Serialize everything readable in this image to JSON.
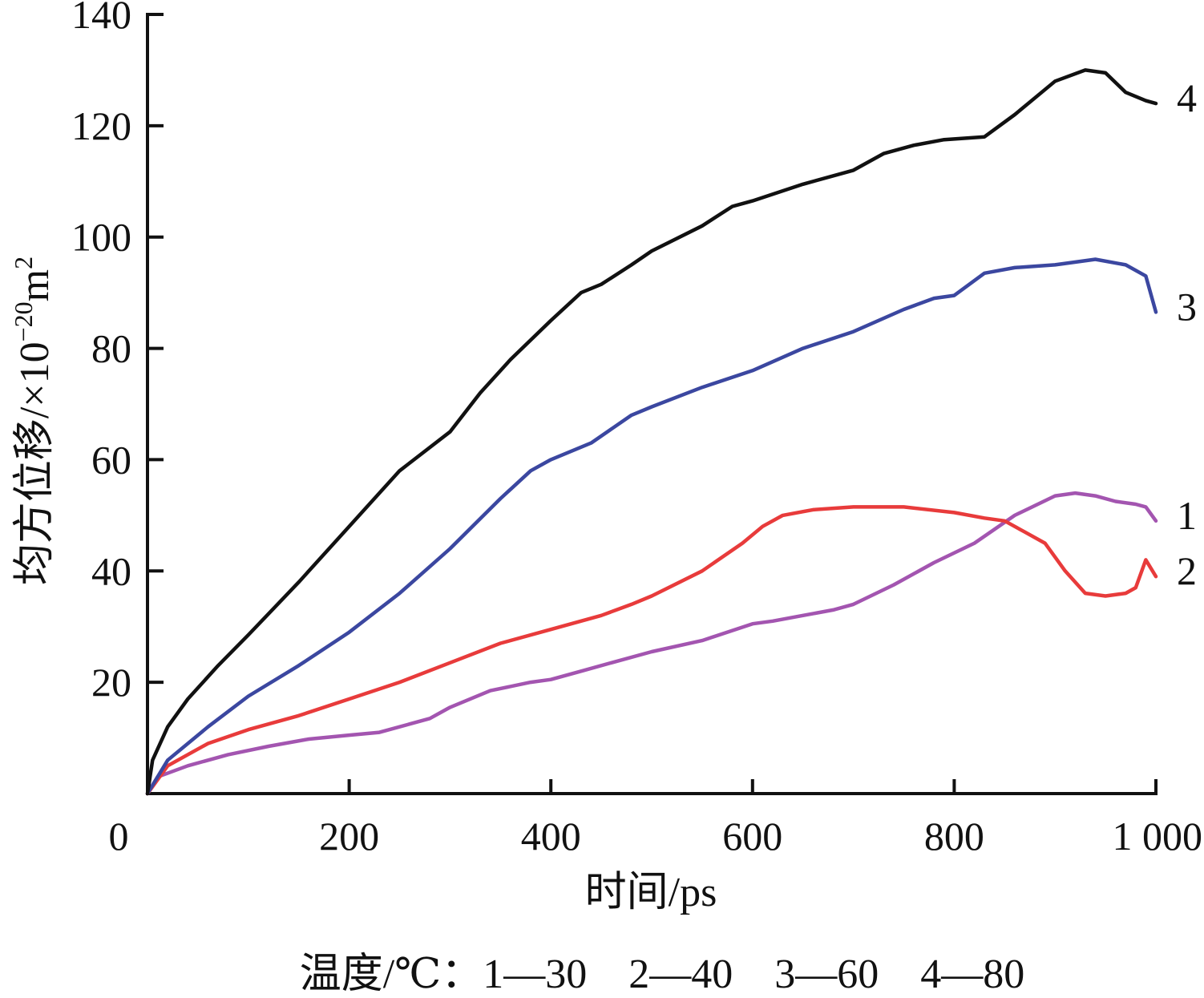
{
  "chart_data": {
    "type": "line",
    "xlabel": "时间/ps",
    "ylabel_main": "均方位移/×10",
    "ylabel_exp": "−20",
    "ylabel_unit": "m",
    "ylabel_unit_exp": "2",
    "xlim": [
      0,
      1000
    ],
    "ylim": [
      0,
      140
    ],
    "xticks": [
      {
        "value": 0,
        "label": "0"
      },
      {
        "value": 200,
        "label": "200"
      },
      {
        "value": 400,
        "label": "400"
      },
      {
        "value": 600,
        "label": "600"
      },
      {
        "value": 800,
        "label": "800"
      },
      {
        "value": 1000,
        "label": "1 000"
      }
    ],
    "yticks": [
      {
        "value": 20,
        "label": "20"
      },
      {
        "value": 40,
        "label": "40"
      },
      {
        "value": 60,
        "label": "60"
      },
      {
        "value": 80,
        "label": "80"
      },
      {
        "value": 100,
        "label": "100"
      },
      {
        "value": 120,
        "label": "120"
      },
      {
        "value": 140,
        "label": "140"
      }
    ],
    "grid": false,
    "legend_text": "温度/℃：1—30　2—40　3—60　4—80",
    "series": [
      {
        "name": "1",
        "color": "#a355b0",
        "points": [
          [
            0,
            0
          ],
          [
            10,
            3
          ],
          [
            40,
            5
          ],
          [
            80,
            7
          ],
          [
            120,
            8.5
          ],
          [
            160,
            9.8
          ],
          [
            200,
            10.5
          ],
          [
            230,
            11
          ],
          [
            260,
            12.5
          ],
          [
            280,
            13.5
          ],
          [
            300,
            15.5
          ],
          [
            340,
            18.5
          ],
          [
            380,
            20
          ],
          [
            400,
            20.5
          ],
          [
            430,
            22
          ],
          [
            460,
            23.5
          ],
          [
            500,
            25.5
          ],
          [
            550,
            27.5
          ],
          [
            600,
            30.5
          ],
          [
            620,
            31
          ],
          [
            650,
            32
          ],
          [
            680,
            33
          ],
          [
            700,
            34
          ],
          [
            740,
            37.5
          ],
          [
            780,
            41.5
          ],
          [
            820,
            45
          ],
          [
            860,
            50
          ],
          [
            900,
            53.5
          ],
          [
            920,
            54
          ],
          [
            940,
            53.5
          ],
          [
            960,
            52.5
          ],
          [
            980,
            52
          ],
          [
            990,
            51.5
          ],
          [
            1000,
            49
          ]
        ]
      },
      {
        "name": "2",
        "color": "#e83b3b",
        "points": [
          [
            0,
            0
          ],
          [
            20,
            5
          ],
          [
            60,
            9
          ],
          [
            100,
            11.5
          ],
          [
            150,
            14
          ],
          [
            200,
            17
          ],
          [
            250,
            20
          ],
          [
            300,
            23.5
          ],
          [
            350,
            27
          ],
          [
            400,
            29.5
          ],
          [
            450,
            32
          ],
          [
            480,
            34
          ],
          [
            500,
            35.5
          ],
          [
            550,
            40
          ],
          [
            590,
            45
          ],
          [
            610,
            48
          ],
          [
            630,
            50
          ],
          [
            660,
            51
          ],
          [
            700,
            51.5
          ],
          [
            750,
            51.5
          ],
          [
            800,
            50.5
          ],
          [
            830,
            49.5
          ],
          [
            850,
            49
          ],
          [
            870,
            47
          ],
          [
            890,
            45
          ],
          [
            910,
            40
          ],
          [
            930,
            36
          ],
          [
            950,
            35.5
          ],
          [
            970,
            36
          ],
          [
            980,
            37
          ],
          [
            990,
            42
          ],
          [
            1000,
            39
          ]
        ]
      },
      {
        "name": "3",
        "color": "#3b47a0",
        "points": [
          [
            0,
            0
          ],
          [
            20,
            6
          ],
          [
            60,
            12
          ],
          [
            100,
            17.5
          ],
          [
            150,
            23
          ],
          [
            200,
            29
          ],
          [
            250,
            36
          ],
          [
            300,
            44
          ],
          [
            350,
            53
          ],
          [
            380,
            58
          ],
          [
            400,
            60
          ],
          [
            440,
            63
          ],
          [
            480,
            68
          ],
          [
            500,
            69.5
          ],
          [
            550,
            73
          ],
          [
            600,
            76
          ],
          [
            650,
            80
          ],
          [
            700,
            83
          ],
          [
            750,
            87
          ],
          [
            780,
            89
          ],
          [
            800,
            89.5
          ],
          [
            830,
            93.5
          ],
          [
            860,
            94.5
          ],
          [
            900,
            95
          ],
          [
            940,
            96
          ],
          [
            970,
            95
          ],
          [
            990,
            93
          ],
          [
            1000,
            86.5
          ]
        ]
      },
      {
        "name": "4",
        "color": "#111111",
        "points": [
          [
            0,
            0
          ],
          [
            5,
            6
          ],
          [
            20,
            12
          ],
          [
            40,
            17
          ],
          [
            70,
            23
          ],
          [
            100,
            28.5
          ],
          [
            150,
            38
          ],
          [
            200,
            48
          ],
          [
            250,
            58
          ],
          [
            300,
            65
          ],
          [
            330,
            72
          ],
          [
            360,
            78
          ],
          [
            400,
            85
          ],
          [
            430,
            90
          ],
          [
            450,
            91.5
          ],
          [
            480,
            95
          ],
          [
            500,
            97.5
          ],
          [
            550,
            102
          ],
          [
            580,
            105.5
          ],
          [
            600,
            106.5
          ],
          [
            650,
            109.5
          ],
          [
            700,
            112
          ],
          [
            730,
            115
          ],
          [
            760,
            116.5
          ],
          [
            790,
            117.5
          ],
          [
            830,
            118
          ],
          [
            860,
            122
          ],
          [
            900,
            128
          ],
          [
            930,
            130
          ],
          [
            950,
            129.5
          ],
          [
            970,
            126
          ],
          [
            990,
            124.5
          ],
          [
            1000,
            124
          ]
        ]
      }
    ]
  }
}
